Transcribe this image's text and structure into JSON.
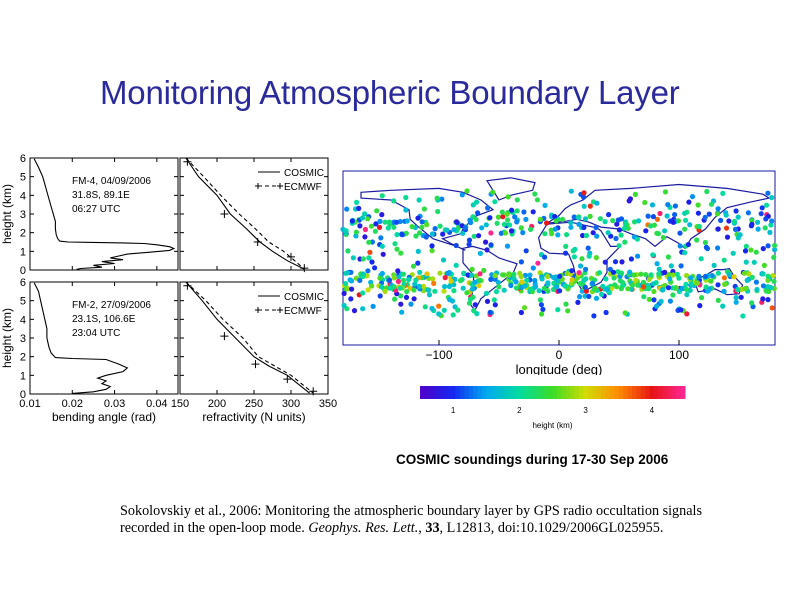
{
  "title": "Monitoring Atmospheric Boundary Layer",
  "chart_data": [
    {
      "type": "line",
      "panel": "top-left",
      "annotation": [
        "FM-4, 04/09/2006",
        "31.8S, 89.1E",
        "06:27 UTC"
      ],
      "ylabel": "height (km)",
      "xlim": [
        0.01,
        0.045
      ],
      "ylim": [
        0,
        6
      ],
      "series": [
        {
          "x": [
            0.011,
            0.012,
            0.013,
            0.0135,
            0.014,
            0.0145,
            0.015,
            0.0155,
            0.016,
            0.016,
            0.0162,
            0.0165,
            0.017,
            0.019,
            0.025,
            0.032,
            0.037,
            0.04,
            0.043,
            0.044,
            0.043,
            0.038,
            0.033,
            0.031,
            0.029,
            0.032,
            0.027,
            0.03,
            0.025,
            0.027,
            0.022,
            0.021
          ],
          "y": [
            5.95,
            5.5,
            5.0,
            4.6,
            4.2,
            3.8,
            3.4,
            3.0,
            2.6,
            2.2,
            1.9,
            1.7,
            1.55,
            1.5,
            1.48,
            1.45,
            1.42,
            1.35,
            1.25,
            1.15,
            1.05,
            0.95,
            0.85,
            0.75,
            0.65,
            0.55,
            0.45,
            0.35,
            0.25,
            0.15,
            0.08,
            0.03
          ]
        }
      ]
    },
    {
      "type": "line",
      "panel": "top-right",
      "xlim": [
        150,
        350
      ],
      "ylim": [
        0,
        6
      ],
      "legend": [
        "COSMIC",
        "ECMWF"
      ],
      "series": [
        {
          "name": "COSMIC",
          "x": [
            158,
            175,
            200,
            218,
            240,
            258,
            275,
            295,
            318
          ],
          "y": [
            6.0,
            5.0,
            4.0,
            3.0,
            2.2,
            1.5,
            1.0,
            0.5,
            0.05
          ]
        },
        {
          "name": "ECMWF",
          "x": [
            158,
            182,
            205,
            230,
            252,
            270,
            290,
            305,
            318
          ],
          "y": [
            6.0,
            5.0,
            4.0,
            3.0,
            2.2,
            1.5,
            1.0,
            0.5,
            0.05
          ],
          "markers": [
            [
              160,
              5.8
            ],
            [
              210,
              3.0
            ],
            [
              255,
              1.5
            ],
            [
              300,
              0.7
            ],
            [
              318,
              0.1
            ]
          ]
        }
      ]
    },
    {
      "type": "line",
      "panel": "bottom-left",
      "annotation": [
        "FM-2, 27/09/2006",
        "23.1S, 106.6E",
        "23:04 UTC"
      ],
      "xlabel": "bending angle (rad)",
      "ylabel": "height (km)",
      "xlim": [
        0.01,
        0.045
      ],
      "xticks": [
        "0.01",
        "0.02",
        "0.03",
        "0.04"
      ],
      "ylim": [
        0,
        6
      ],
      "series": [
        {
          "x": [
            0.011,
            0.012,
            0.0125,
            0.013,
            0.0135,
            0.014,
            0.014,
            0.0145,
            0.015,
            0.016,
            0.02,
            0.028,
            0.031,
            0.033,
            0.032,
            0.028,
            0.026,
            0.028,
            0.027,
            0.029,
            0.028,
            0.025,
            0.02
          ],
          "y": [
            5.95,
            5.5,
            5.0,
            4.5,
            4.0,
            3.5,
            3.0,
            2.5,
            2.2,
            1.95,
            1.9,
            1.85,
            1.6,
            1.4,
            1.2,
            1.0,
            0.85,
            0.7,
            0.55,
            0.4,
            0.25,
            0.12,
            0.03
          ]
        }
      ]
    },
    {
      "type": "line",
      "panel": "bottom-right",
      "xlabel": "refractivity (N units)",
      "xlim": [
        150,
        350
      ],
      "xticks": [
        "150",
        "200",
        "250",
        "300",
        "350"
      ],
      "ylim": [
        0,
        6
      ],
      "legend": [
        "COSMIC",
        "ECMWF"
      ],
      "series": [
        {
          "name": "COSMIC",
          "x": [
            158,
            180,
            200,
            225,
            250,
            270,
            295,
            325
          ],
          "y": [
            6.0,
            5.0,
            4.0,
            3.0,
            2.0,
            1.5,
            1.0,
            0.05
          ]
        },
        {
          "name": "ECMWF",
          "x": [
            158,
            185,
            208,
            235,
            256,
            278,
            300,
            330
          ],
          "y": [
            6.0,
            5.0,
            4.0,
            3.0,
            2.0,
            1.5,
            1.0,
            0.05
          ],
          "markers": [
            [
              160,
              5.8
            ],
            [
              210,
              3.1
            ],
            [
              252,
              1.6
            ],
            [
              295,
              0.8
            ],
            [
              330,
              0.15
            ]
          ]
        }
      ]
    },
    {
      "type": "scatter",
      "panel": "map",
      "xlabel": "longitude (deg)",
      "xticks": [
        "−100",
        "0",
        "100"
      ],
      "xlim": [
        -180,
        180
      ],
      "ylim": [
        -90,
        90
      ],
      "colorbar": {
        "label": "height (km)",
        "ticks": [
          "1",
          "2",
          "3",
          "4"
        ],
        "range": [
          0.5,
          4.5
        ]
      },
      "background": "#ffffff",
      "coast_color": "#1a1aa0"
    }
  ],
  "map_caption": "COSMIC soundings during 17-30 Sep 2006",
  "reference": {
    "part1": "Sokolovskiy et al., 2006: Monitoring the atmospheric boundary layer by GPS radio occultation signals recorded in the open-loop mode. ",
    "journal": "Geophys. Res. Lett.",
    "sep1": ", ",
    "volume": "33",
    "part2": ", L12813, doi:10.1029/2006GL025955."
  }
}
